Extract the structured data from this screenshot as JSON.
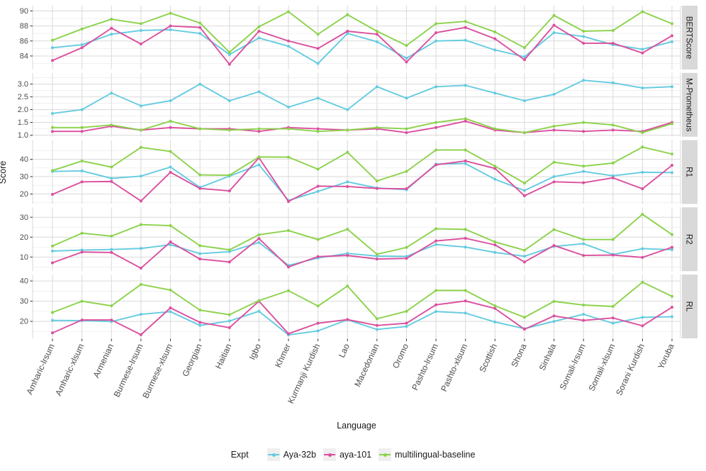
{
  "chart_data": {
    "type": "line",
    "title": "",
    "xlabel": "Language",
    "ylabel": "Score",
    "legend": {
      "title": "Expt",
      "position": "bottom"
    },
    "grid": true,
    "categories": [
      "Amharic-lrsum",
      "Amharic-xlsum",
      "Armenian",
      "Burmese-lrsum",
      "Burmese-xlsum",
      "Georgian",
      "Haitian",
      "Igbo",
      "Khmer",
      "Kurmanji Kurdish",
      "Lao",
      "Macedonian",
      "Oromo",
      "Pashto-lrsum",
      "Pashto-xlsum",
      "Scottish",
      "Shona",
      "Sinhala",
      "Somali-lrsum",
      "Somali-xlsum",
      "Sorani Kurdish",
      "Yoruba"
    ],
    "series_meta": [
      {
        "name": "Aya-32b",
        "color": "#64CBE0"
      },
      {
        "name": "aya-101",
        "color": "#DB4F9E"
      },
      {
        "name": "multilingual-baseline",
        "color": "#8CD24B"
      }
    ],
    "facets": [
      {
        "label": "BERTScore",
        "ylim": [
          82.2,
          90.7
        ],
        "yticks": [
          84,
          86,
          88,
          90
        ],
        "ytick_labels": [
          "84",
          "86",
          "88",
          "90"
        ],
        "series": [
          [
            85.1,
            85.5,
            86.9,
            87.4,
            87.5,
            87.0,
            84.2,
            86.4,
            85.3,
            83.0,
            87.0,
            85.9,
            83.7,
            86.0,
            86.1,
            84.8,
            83.9,
            87.1,
            86.6,
            85.5,
            84.9,
            85.9
          ],
          [
            83.4,
            85.1,
            87.7,
            85.6,
            88.0,
            87.8,
            82.9,
            87.3,
            86.0,
            85.0,
            87.3,
            86.9,
            83.2,
            87.1,
            87.8,
            86.3,
            83.5,
            88.1,
            85.7,
            85.7,
            84.4,
            86.7
          ],
          [
            86.1,
            87.6,
            88.9,
            88.3,
            89.7,
            88.4,
            84.5,
            87.9,
            89.9,
            86.9,
            89.5,
            87.3,
            85.4,
            88.3,
            88.6,
            87.2,
            85.1,
            89.4,
            87.3,
            87.4,
            89.9,
            88.3
          ]
        ]
      },
      {
        "label": "M-Prometheus",
        "ylim": [
          0.94,
          3.44
        ],
        "yticks": [
          1.0,
          1.5,
          2.0,
          2.5,
          3.0
        ],
        "ytick_labels": [
          "1.0",
          "1.5",
          "2.0",
          "2.5",
          "3.0"
        ],
        "series": [
          [
            1.85,
            2.0,
            2.65,
            2.15,
            2.35,
            3.0,
            2.35,
            2.7,
            2.1,
            2.45,
            2.0,
            2.9,
            2.45,
            2.9,
            2.95,
            2.65,
            2.35,
            2.6,
            3.15,
            3.05,
            2.85,
            2.9
          ],
          [
            1.15,
            1.15,
            1.35,
            1.2,
            1.3,
            1.25,
            1.25,
            1.15,
            1.3,
            1.25,
            1.2,
            1.25,
            1.1,
            1.3,
            1.55,
            1.2,
            1.1,
            1.2,
            1.15,
            1.2,
            1.15,
            1.5
          ],
          [
            1.3,
            1.3,
            1.4,
            1.2,
            1.55,
            1.25,
            1.2,
            1.25,
            1.25,
            1.15,
            1.2,
            1.3,
            1.25,
            1.5,
            1.65,
            1.25,
            1.1,
            1.35,
            1.5,
            1.4,
            1.1,
            1.45
          ]
        ]
      },
      {
        "label": "R1",
        "ylim": [
          14.3,
          51.0
        ],
        "yticks": [
          20,
          30,
          40
        ],
        "ytick_labels": [
          "20",
          "30",
          "40"
        ],
        "series": [
          [
            33.0,
            33.3,
            29.0,
            30.3,
            35.5,
            23.8,
            30.3,
            36.8,
            16.3,
            21.5,
            27.0,
            23.5,
            22.5,
            37.2,
            37.5,
            28.5,
            22.0,
            30.0,
            33.0,
            30.5,
            32.5,
            32.3
          ],
          [
            19.8,
            27.0,
            27.2,
            16.0,
            32.5,
            23.2,
            21.8,
            40.8,
            15.7,
            24.5,
            24.3,
            23.2,
            23.0,
            36.8,
            39.0,
            34.7,
            19.0,
            27.0,
            26.5,
            29.3,
            23.0,
            36.5
          ],
          [
            33.5,
            39.0,
            35.5,
            46.8,
            44.5,
            31.0,
            30.8,
            41.3,
            41.2,
            34.3,
            44.0,
            27.5,
            33.0,
            45.3,
            45.3,
            36.0,
            26.3,
            38.3,
            36.0,
            37.8,
            47.0,
            43.0
          ]
        ]
      },
      {
        "label": "R2",
        "ylim": [
          2.9,
          35.0
        ],
        "yticks": [
          10,
          20,
          30
        ],
        "ytick_labels": [
          "10",
          "20",
          "30"
        ],
        "series": [
          [
            13.0,
            13.5,
            13.8,
            14.3,
            16.2,
            11.7,
            12.7,
            17.3,
            5.8,
            9.5,
            11.8,
            10.5,
            10.3,
            16.3,
            15.0,
            12.3,
            10.4,
            15.3,
            16.7,
            11.3,
            14.2,
            13.7
          ],
          [
            7.1,
            12.5,
            12.3,
            4.4,
            17.6,
            9.0,
            7.5,
            19.3,
            5.0,
            10.2,
            10.8,
            9.0,
            9.3,
            18.1,
            19.4,
            16.1,
            7.5,
            15.8,
            10.8,
            11.0,
            9.8,
            14.9
          ],
          [
            15.5,
            22.0,
            20.5,
            26.3,
            25.8,
            15.7,
            13.6,
            21.2,
            23.3,
            18.8,
            24.0,
            11.4,
            14.8,
            24.2,
            23.9,
            17.6,
            13.4,
            23.8,
            18.8,
            18.8,
            31.5,
            21.3
          ]
        ]
      },
      {
        "label": "RL",
        "ylim": [
          11.6,
          43.2
        ],
        "yticks": [
          20,
          30,
          40
        ],
        "ytick_labels": [
          "20",
          "30",
          "40"
        ],
        "series": [
          [
            20.5,
            20.4,
            19.9,
            23.5,
            24.8,
            18.0,
            20.2,
            25.0,
            13.3,
            15.3,
            20.8,
            16.0,
            17.5,
            24.9,
            24.1,
            19.7,
            16.4,
            20.0,
            23.5,
            19.1,
            22.0,
            22.3
          ],
          [
            14.3,
            20.7,
            20.7,
            13.4,
            26.7,
            19.5,
            16.9,
            30.0,
            13.9,
            19.1,
            20.9,
            18.0,
            19.1,
            28.2,
            30.1,
            26.4,
            16.1,
            22.7,
            20.5,
            21.7,
            17.8,
            27.0
          ],
          [
            24.4,
            30.0,
            27.7,
            38.3,
            35.5,
            25.6,
            23.3,
            30.3,
            35.2,
            27.6,
            37.5,
            21.3,
            25.0,
            35.3,
            35.3,
            27.7,
            22.0,
            29.9,
            28.1,
            27.4,
            39.4,
            32.4
          ]
        ]
      }
    ]
  },
  "colors": {
    "strip_bg": "#D9D9D9",
    "strip_text": "#1a1a1a",
    "grid_major": "#D9D9D9",
    "grid_minor": "#ECECEC",
    "axis_text": "#4D4D4D",
    "tick_mark": "#333333",
    "legend_key_bg": "#EFEFEF"
  }
}
